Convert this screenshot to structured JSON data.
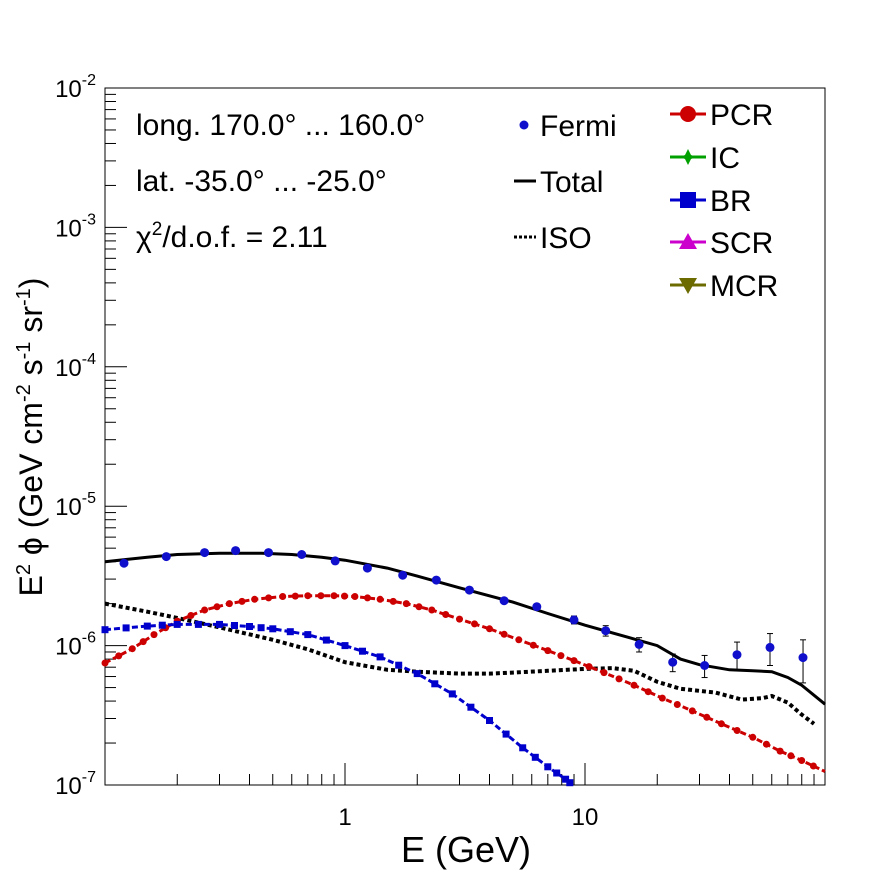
{
  "chart_data": {
    "type": "scatter",
    "title": "",
    "xlabel": "E (GeV)",
    "ylabel": "E² ϕ (GeV cm⁻² s⁻¹ sr⁻¹)",
    "ylabel_parts": {
      "base": "E",
      "sup1": "2",
      "phi": " ϕ (GeV cm",
      "sup2": "-2",
      "mid": " s",
      "sup3": "-1",
      "mid2": " sr",
      "sup4": "-1",
      "end": ")"
    },
    "xscale": "log",
    "yscale": "log",
    "xlim": [
      0.1,
      100
    ],
    "ylim": [
      1e-07,
      0.01
    ],
    "x_ticklabels": [
      {
        "value": 1,
        "label": "1"
      },
      {
        "value": 10,
        "label": "10"
      }
    ],
    "y_ticklabels": [
      {
        "value": 1e-07,
        "base": "10",
        "exp": "-7"
      },
      {
        "value": 1e-06,
        "base": "10",
        "exp": "-6"
      },
      {
        "value": 1e-05,
        "base": "10",
        "exp": "-5"
      },
      {
        "value": 0.0001,
        "base": "10",
        "exp": "-4"
      },
      {
        "value": 0.001,
        "base": "10",
        "exp": "-3"
      },
      {
        "value": 0.01,
        "base": "10",
        "exp": "-2"
      }
    ],
    "annotations": {
      "longitude": "long. 170.0° ... 160.0°",
      "latitude": "lat. -35.0° ... -25.0°",
      "chi2": {
        "symbol": "χ",
        "sup": "2",
        "rest": "/d.o.f. = 2.11"
      }
    },
    "legend_left": [
      {
        "label": "Fermi",
        "style": "marker",
        "color": "#1010cc"
      },
      {
        "label": "Total",
        "style": "solid",
        "color": "#000000"
      },
      {
        "label": "ISO",
        "style": "dotted",
        "color": "#000000"
      }
    ],
    "legend_right": [
      {
        "label": "PCR",
        "marker": "circle",
        "color": "#cc0000"
      },
      {
        "label": "IC",
        "marker": "star",
        "color": "#00a000"
      },
      {
        "label": "BR",
        "marker": "square",
        "color": "#0000cc"
      },
      {
        "label": "SCR",
        "marker": "triangle-up",
        "color": "#cc00cc"
      },
      {
        "label": "MCR",
        "marker": "triangle-down",
        "color": "#6b6b00"
      }
    ],
    "fermi": {
      "name": "Fermi",
      "x": [
        0.12,
        0.18,
        0.26,
        0.35,
        0.48,
        0.66,
        0.91,
        1.24,
        1.74,
        2.4,
        3.3,
        4.6,
        6.3,
        9.0,
        12.2,
        16.8,
        23.2,
        31.5,
        43.0,
        59.0,
        81.0
      ],
      "y": [
        3.9e-06,
        4.35e-06,
        4.65e-06,
        4.8e-06,
        4.65e-06,
        4.5e-06,
        4.05e-06,
        3.6e-06,
        3.2e-06,
        2.95e-06,
        2.5e-06,
        2.1e-06,
        1.9e-06,
        1.53e-06,
        1.28e-06,
        1.02e-06,
        7.6e-07,
        7.2e-07,
        8.6e-07,
        9.7e-07,
        8.2e-07
      ],
      "err_low": [
        0,
        0,
        0,
        0,
        0,
        0,
        0,
        0,
        0,
        0,
        0,
        0,
        0,
        1e-07,
        1.1e-07,
        1.2e-07,
        1.1e-07,
        1.3e-07,
        2e-07,
        2.5e-07,
        2.8e-07
      ],
      "err_high": [
        0,
        0,
        0,
        0,
        0,
        0,
        0,
        0,
        0,
        0,
        0,
        0,
        0,
        1e-07,
        1.1e-07,
        1.2e-07,
        1.1e-07,
        1.3e-07,
        2e-07,
        2.5e-07,
        2.8e-07
      ],
      "color": "#1010cc"
    },
    "total": {
      "name": "Total",
      "x": [
        0.1,
        0.15,
        0.2,
        0.3,
        0.45,
        0.6,
        0.8,
        1.0,
        1.5,
        2.0,
        3.0,
        5.0,
        7.0,
        10.0,
        15.0,
        20.0,
        25.0,
        30.0,
        40.0,
        50.0,
        60.0,
        70.0,
        80.0,
        100.0
      ],
      "y": [
        4e-06,
        4.3e-06,
        4.5e-06,
        4.6e-06,
        4.6e-06,
        4.5e-06,
        4.3e-06,
        4.1e-06,
        3.6e-06,
        3.15e-06,
        2.6e-06,
        2.05e-06,
        1.7e-06,
        1.4e-06,
        1.15e-06,
        1e-06,
        8e-07,
        7.3e-07,
        6.7e-07,
        6.6e-07,
        6.5e-07,
        5.9e-07,
        5.2e-07,
        3.8e-07
      ],
      "color": "#000000"
    },
    "iso": {
      "name": "ISO",
      "x": [
        0.1,
        0.15,
        0.2,
        0.3,
        0.5,
        0.7,
        1.0,
        1.5,
        2.0,
        3.0,
        4.0,
        5.0,
        7.0,
        10.0,
        13.0,
        16.0,
        20.0,
        25.0,
        35.0,
        45.0,
        55.0,
        60.0,
        70.0,
        80.0,
        90.0
      ],
      "y": [
        2e-06,
        1.75e-06,
        1.58e-06,
        1.35e-06,
        1.1e-06,
        9.4e-07,
        7.6e-07,
        6.7e-07,
        6.5e-07,
        6.3e-07,
        6.3e-07,
        6.4e-07,
        6.6e-07,
        6.8e-07,
        6.9e-07,
        6.6e-07,
        5.5e-07,
        4.9e-07,
        4.6e-07,
        4.1e-07,
        4.2e-07,
        4.35e-07,
        3.9e-07,
        3.2e-07,
        2.75e-07
      ],
      "color": "#000000"
    },
    "pcr": {
      "name": "PCR",
      "x": [
        0.1,
        0.13,
        0.16,
        0.2,
        0.26,
        0.33,
        0.42,
        0.55,
        0.7,
        0.9,
        1.1,
        1.4,
        1.8,
        2.3,
        3.0,
        4.0,
        5.3,
        7.0,
        9.0,
        12.0,
        16.0,
        21.0,
        28.0,
        37.0,
        50.0,
        65.0,
        80.0,
        100.0
      ],
      "y": [
        7.5e-07,
        9.5e-07,
        1.2e-06,
        1.5e-06,
        1.8e-06,
        2e-06,
        2.15e-06,
        2.25e-06,
        2.28e-06,
        2.28e-06,
        2.25e-06,
        2.15e-06,
        2e-06,
        1.8e-06,
        1.55e-06,
        1.32e-06,
        1.1e-06,
        9.2e-07,
        7.8e-07,
        6.4e-07,
        5.2e-07,
        4.2e-07,
        3.4e-07,
        2.75e-07,
        2.2e-07,
        1.75e-07,
        1.5e-07,
        1.25e-07
      ],
      "color": "#cc0000"
    },
    "br": {
      "name": "BR",
      "x": [
        0.1,
        0.15,
        0.2,
        0.3,
        0.4,
        0.5,
        0.7,
        1.0,
        1.4,
        2.0,
        2.8,
        4.0,
        5.5,
        7.0,
        8.3,
        9.0
      ],
      "y": [
        1.3e-06,
        1.38e-06,
        1.42e-06,
        1.42e-06,
        1.37e-06,
        1.32e-06,
        1.2e-06,
        1e-06,
        8.3e-07,
        6.3e-07,
        4.5e-07,
        2.9e-07,
        1.85e-07,
        1.35e-07,
        1.1e-07,
        9.8e-08
      ],
      "color": "#0000cc"
    }
  }
}
